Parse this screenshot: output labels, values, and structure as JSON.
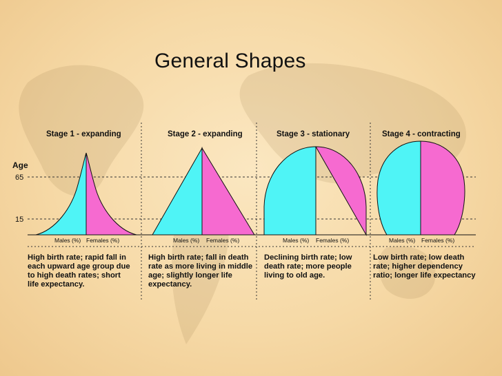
{
  "slide": {
    "title": "General Shapes",
    "axis": {
      "label": "Age",
      "ticks": [
        "65",
        "15"
      ]
    },
    "stages": [
      {
        "title": "Stage 1 - expanding",
        "males_label": "Males (%)",
        "females_label": "Females (%)",
        "description": [
          "High birth rate; rapid fall in",
          "each upward age group due",
          "to high death rates; short",
          "life expectancy."
        ]
      },
      {
        "title": "Stage 2 - expanding",
        "males_label": "Males (%)",
        "females_label": "Females (%)",
        "description": [
          "High birth rate; fall in death",
          "rate as more living in middle",
          "age; slightly longer life",
          "expectancy."
        ]
      },
      {
        "title": "Stage 3 - stationary",
        "males_label": "Males (%)",
        "females_label": "Females (%)",
        "description": [
          "Declining birth rate; low",
          "death rate; more people",
          "living to old age."
        ]
      },
      {
        "title": "Stage 4 - contracting",
        "males_label": "Males (%)",
        "females_label": "Females (%)",
        "description": [
          "Low birth rate; low death",
          "rate; higher dependency",
          "ratio; longer life expectancy"
        ]
      }
    ]
  },
  "colors": {
    "male": "#4ff4f6",
    "female": "#f66ad0",
    "outline": "#111111",
    "background": "#f8dfb0"
  }
}
